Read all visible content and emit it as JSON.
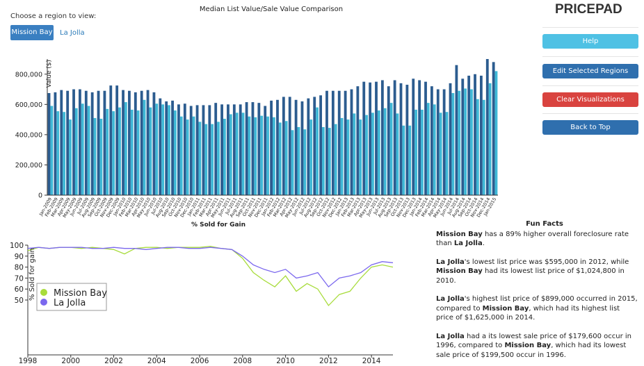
{
  "header": {
    "prompt": "Choose a region to view:",
    "regions": [
      "Mission Bay",
      "La Jolla"
    ],
    "brand": "PRICEPAD"
  },
  "buttons": [
    "Help",
    "Edit Selected Regions",
    "Clear Visualizations",
    "Back to Top"
  ],
  "chart_data": [
    {
      "type": "bar",
      "title": "Median List Value/Sale Value Comparison",
      "ylabel": "Value ($)",
      "xlabel": "% Sold for Gain",
      "categories": [
        "Jan-2009",
        "Feb-2009",
        "Mar-2009",
        "Apr-2009",
        "May-2009",
        "Jun-2009",
        "Jul-2009",
        "Aug-2009",
        "Sep-2009",
        "Oct-2009",
        "Nov-2009",
        "Dec-2009",
        "Jan-2010",
        "Feb-2010",
        "Mar-2010",
        "Apr-2010",
        "May-2010",
        "Jun-2010",
        "Jul-2010",
        "Aug-2010",
        "Sep-2010",
        "Oct-2010",
        "Nov-2010",
        "Dec-2010",
        "Jan-2011",
        "Feb-2011",
        "Mar-2011",
        "Apr-2011",
        "May-2011",
        "Jun-2011",
        "Jul-2011",
        "Aug-2011",
        "Sep-2011",
        "Oct-2011",
        "Nov-2011",
        "Dec-2011",
        "Jan-2012",
        "Feb-2012",
        "Mar-2012",
        "Apr-2012",
        "May-2012",
        "Jun-2012",
        "Jul-2012",
        "Aug-2012",
        "Sep-2012",
        "Oct-2012",
        "Nov-2012",
        "Dec-2012",
        "Jan-2013",
        "Feb-2013",
        "Mar-2013",
        "Apr-2013",
        "May-2013",
        "Jun-2013",
        "Jul-2013",
        "Aug-2013",
        "Sep-2013",
        "Oct-2013",
        "Nov-2013",
        "Dec-2013",
        "Jan-2014",
        "Feb-2014",
        "Mar-2014",
        "Apr-2014",
        "May-2014",
        "Jun-2014",
        "Jul-2014",
        "Aug-2014",
        "Sep-2014",
        "Oct-2014",
        "Nov-2014",
        "Dec-2014",
        "Jan-2015"
      ],
      "series": [
        {
          "color": "#2c5c8f",
          "values": [
            675000,
            680000,
            695000,
            690000,
            700000,
            700000,
            690000,
            680000,
            690000,
            690000,
            725000,
            725000,
            695000,
            690000,
            680000,
            690000,
            695000,
            680000,
            640000,
            620000,
            625000,
            600000,
            605000,
            590000,
            595000,
            595000,
            595000,
            610000,
            600000,
            600000,
            600000,
            600000,
            615000,
            615000,
            610000,
            590000,
            625000,
            630000,
            650000,
            650000,
            630000,
            620000,
            640000,
            650000,
            660000,
            690000,
            690000,
            690000,
            690000,
            700000,
            720000,
            750000,
            745000,
            750000,
            760000,
            720000,
            760000,
            740000,
            730000,
            770000,
            760000,
            750000,
            720000,
            700000,
            700000,
            740000,
            860000,
            770000,
            790000,
            800000,
            790000,
            900000,
            880000
          ]
        },
        {
          "color": "#3fb8d6",
          "values": [
            590000,
            555000,
            550000,
            500000,
            575000,
            605000,
            590000,
            510000,
            505000,
            570000,
            555000,
            580000,
            615000,
            565000,
            560000,
            630000,
            580000,
            605000,
            600000,
            595000,
            560000,
            520000,
            500000,
            520000,
            485000,
            470000,
            470000,
            485000,
            505000,
            535000,
            545000,
            545000,
            520000,
            515000,
            525000,
            520000,
            515000,
            480000,
            490000,
            430000,
            450000,
            435000,
            500000,
            580000,
            450000,
            445000,
            470000,
            510000,
            500000,
            540000,
            500000,
            530000,
            545000,
            560000,
            575000,
            610000,
            540000,
            460000,
            460000,
            565000,
            565000,
            610000,
            600000,
            545000,
            550000,
            675000,
            690000,
            705000,
            700000,
            635000,
            630000,
            740000,
            820000
          ]
        }
      ],
      "ylim": [
        0,
        900000
      ],
      "yticks": [
        0,
        {
          "value": 200000,
          "label": "200,000"
        },
        {
          "value": 400000,
          "label": "400,000"
        },
        {
          "value": 600000,
          "label": "600,000"
        },
        {
          "value": 800000,
          "label": "800,000"
        }
      ]
    },
    {
      "type": "line",
      "ylabel": "% Sold for gain",
      "x": [
        1998,
        1998.5,
        1999,
        1999.5,
        2000,
        2000.5,
        2001,
        2001.5,
        2002,
        2002.5,
        2003,
        2003.5,
        2004,
        2004.5,
        2005,
        2005.5,
        2006,
        2006.5,
        2007,
        2007.5,
        2008,
        2008.5,
        2009,
        2009.5,
        2010,
        2010.5,
        2011,
        2011.5,
        2012,
        2012.5,
        2013,
        2013.5,
        2014,
        2014.5,
        2015
      ],
      "series": [
        {
          "name": "Mission Bay",
          "color": "#a8dc3c",
          "values": [
            95,
            98,
            97,
            98,
            98,
            97,
            98,
            97,
            96,
            92,
            97,
            98,
            98,
            97,
            98,
            98,
            98,
            99,
            97,
            96,
            88,
            75,
            68,
            62,
            72,
            58,
            65,
            60,
            45,
            55,
            58,
            70,
            80,
            82,
            80
          ]
        },
        {
          "name": "La Jolla",
          "color": "#7b68ee",
          "values": [
            97,
            98,
            97,
            98,
            98,
            98,
            97,
            97,
            98,
            97,
            97,
            96,
            97,
            98,
            98,
            97,
            97,
            98,
            97,
            96,
            90,
            82,
            78,
            75,
            78,
            70,
            72,
            75,
            62,
            70,
            72,
            75,
            82,
            85,
            84
          ]
        }
      ],
      "xlim": [
        1998,
        2015
      ],
      "xticks": [
        1998,
        2000,
        2002,
        2004,
        2006,
        2008,
        2010,
        2012,
        2014
      ],
      "ylim": [
        0,
        100
      ],
      "yticks": [
        50,
        60,
        70,
        80,
        90,
        100
      ],
      "legend": "lower-left"
    }
  ],
  "fun_facts": {
    "title": "Fun Facts",
    "paragraphs": [
      [
        {
          "strong": "Mission Bay"
        },
        {
          "text": " has a 89% higher overall foreclosure rate than "
        },
        {
          "strong": "La Jolla"
        },
        {
          "text": "."
        }
      ],
      [
        {
          "strong": "La Jolla"
        },
        {
          "text": "'s lowest list price was $595,000 in 2012, while "
        },
        {
          "strong": "Mission Bay"
        },
        {
          "text": " had its lowest list price of $1,024,800 in 2010."
        }
      ],
      [
        {
          "strong": "La Jolla"
        },
        {
          "text": "'s highest list price of $899,000 occurred in 2015, compared to "
        },
        {
          "strong": "Mission Bay"
        },
        {
          "text": ", which had its highest list price of $1,625,000 in 2014."
        }
      ],
      [
        {
          "strong": "La Jolla"
        },
        {
          "text": " had a its lowest sale price of $179,600 occur in 1996, compared to "
        },
        {
          "strong": "Mission Bay"
        },
        {
          "text": ", which had its lowest sale price of $199,500 occur in 1996."
        }
      ]
    ]
  }
}
